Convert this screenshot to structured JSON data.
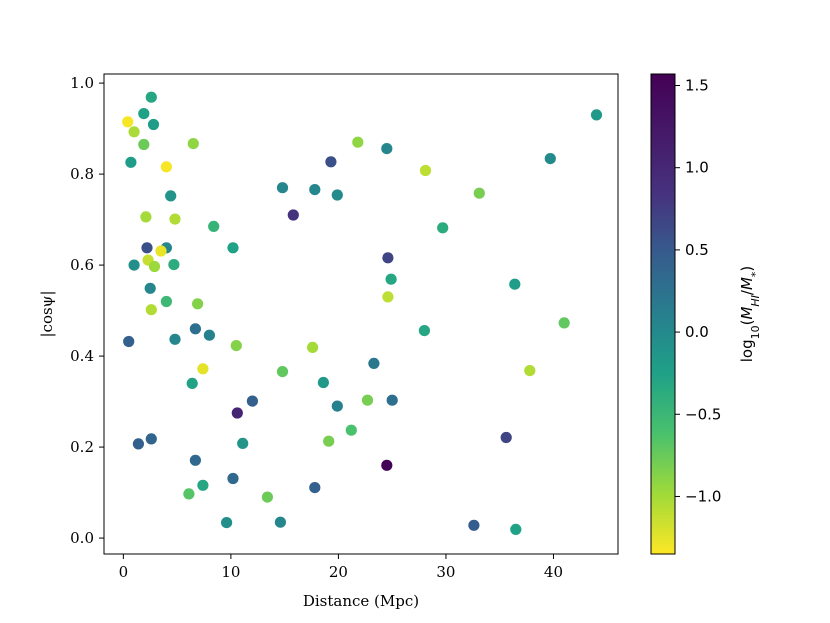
{
  "chart_data": {
    "type": "scatter",
    "title": "",
    "xlabel": "Distance (Mpc)",
    "ylabel": "|cosψ|",
    "xlim": [
      -1.8,
      46
    ],
    "ylim": [
      -0.035,
      1.02
    ],
    "xticks": [
      0,
      10,
      20,
      30,
      40
    ],
    "yticks": [
      0.0,
      0.2,
      0.4,
      0.6,
      0.8,
      1.0
    ],
    "xtick_labels": [
      "0",
      "10",
      "20",
      "30",
      "40"
    ],
    "ytick_labels": [
      "0.0",
      "0.2",
      "0.4",
      "0.6",
      "0.8",
      "1.0"
    ],
    "grid": false,
    "colorbar": {
      "label": "log10(M_HI/M_*)",
      "label_display": {
        "base": "log",
        "sub": "10",
        "open": "(",
        "mass": "M",
        "sub1": "HI",
        "slash": "/",
        "mass2": "M",
        "sub2": "*",
        "close": ")"
      },
      "colormap": "viridis_r",
      "min": -1.35,
      "max": 1.57,
      "ticks": [
        1.5,
        1.0,
        0.5,
        0.0,
        -0.5,
        -1.0
      ],
      "tick_labels": [
        "1.5",
        "1.0",
        "0.5",
        "0.0",
        "−0.5",
        "−1.0"
      ]
    },
    "points": [
      {
        "x": 0.4,
        "y": 0.915,
        "c": -1.3
      },
      {
        "x": 1.0,
        "y": 0.893,
        "c": -0.7
      },
      {
        "x": 0.7,
        "y": 0.826,
        "c": 0.15
      },
      {
        "x": 1.9,
        "y": 0.933,
        "c": 0.1
      },
      {
        "x": 1.9,
        "y": 0.865,
        "c": -0.4
      },
      {
        "x": 2.6,
        "y": 0.969,
        "c": 0.05
      },
      {
        "x": 2.8,
        "y": 0.909,
        "c": 0.15
      },
      {
        "x": 4.0,
        "y": 0.816,
        "c": -1.3
      },
      {
        "x": 6.5,
        "y": 0.867,
        "c": -0.55
      },
      {
        "x": 4.4,
        "y": 0.752,
        "c": 0.25
      },
      {
        "x": 2.1,
        "y": 0.706,
        "c": -0.65
      },
      {
        "x": 4.8,
        "y": 0.701,
        "c": -0.75
      },
      {
        "x": 8.4,
        "y": 0.685,
        "c": -0.1
      },
      {
        "x": 2.2,
        "y": 0.638,
        "c": 0.95
      },
      {
        "x": 4.0,
        "y": 0.638,
        "c": 0.4
      },
      {
        "x": 3.5,
        "y": 0.631,
        "c": -1.2
      },
      {
        "x": 2.3,
        "y": 0.611,
        "c": -0.9
      },
      {
        "x": 2.9,
        "y": 0.597,
        "c": -0.6
      },
      {
        "x": 1.0,
        "y": 0.6,
        "c": 0.3
      },
      {
        "x": 4.7,
        "y": 0.601,
        "c": 0.0
      },
      {
        "x": 2.5,
        "y": 0.549,
        "c": 0.4
      },
      {
        "x": 10.2,
        "y": 0.638,
        "c": 0.1
      },
      {
        "x": 4.0,
        "y": 0.52,
        "c": -0.15
      },
      {
        "x": 2.6,
        "y": 0.502,
        "c": -0.75
      },
      {
        "x": 6.9,
        "y": 0.515,
        "c": -0.5
      },
      {
        "x": 0.5,
        "y": 0.432,
        "c": 0.8
      },
      {
        "x": 4.8,
        "y": 0.437,
        "c": 0.4
      },
      {
        "x": 6.7,
        "y": 0.46,
        "c": 0.65
      },
      {
        "x": 8.0,
        "y": 0.446,
        "c": 0.45
      },
      {
        "x": 10.5,
        "y": 0.423,
        "c": -0.5
      },
      {
        "x": 7.4,
        "y": 0.372,
        "c": -1.15
      },
      {
        "x": 6.4,
        "y": 0.34,
        "c": 0.1
      },
      {
        "x": 12.0,
        "y": 0.301,
        "c": 0.8
      },
      {
        "x": 10.6,
        "y": 0.275,
        "c": 1.3
      },
      {
        "x": 1.4,
        "y": 0.207,
        "c": 0.8
      },
      {
        "x": 2.6,
        "y": 0.218,
        "c": 0.75
      },
      {
        "x": 6.7,
        "y": 0.171,
        "c": 0.7
      },
      {
        "x": 11.1,
        "y": 0.208,
        "c": 0.25
      },
      {
        "x": 7.4,
        "y": 0.116,
        "c": 0.05
      },
      {
        "x": 6.1,
        "y": 0.097,
        "c": -0.3
      },
      {
        "x": 10.2,
        "y": 0.131,
        "c": 0.7
      },
      {
        "x": 9.6,
        "y": 0.034,
        "c": 0.3
      },
      {
        "x": 13.4,
        "y": 0.09,
        "c": -0.4
      },
      {
        "x": 14.6,
        "y": 0.035,
        "c": 0.4
      },
      {
        "x": 14.8,
        "y": 0.77,
        "c": 0.4
      },
      {
        "x": 15.8,
        "y": 0.71,
        "c": 1.2
      },
      {
        "x": 17.8,
        "y": 0.766,
        "c": 0.4
      },
      {
        "x": 19.3,
        "y": 0.827,
        "c": 0.95
      },
      {
        "x": 19.9,
        "y": 0.754,
        "c": 0.35
      },
      {
        "x": 21.8,
        "y": 0.87,
        "c": -0.55
      },
      {
        "x": 24.5,
        "y": 0.856,
        "c": 0.4
      },
      {
        "x": 24.6,
        "y": 0.616,
        "c": 1.05
      },
      {
        "x": 24.9,
        "y": 0.569,
        "c": 0.05
      },
      {
        "x": 24.6,
        "y": 0.53,
        "c": -0.85
      },
      {
        "x": 14.8,
        "y": 0.366,
        "c": -0.35
      },
      {
        "x": 17.6,
        "y": 0.419,
        "c": -0.65
      },
      {
        "x": 18.6,
        "y": 0.342,
        "c": 0.2
      },
      {
        "x": 19.9,
        "y": 0.29,
        "c": 0.45
      },
      {
        "x": 22.7,
        "y": 0.303,
        "c": -0.45
      },
      {
        "x": 23.3,
        "y": 0.384,
        "c": 0.55
      },
      {
        "x": 25.0,
        "y": 0.303,
        "c": 0.65
      },
      {
        "x": 19.1,
        "y": 0.213,
        "c": -0.45
      },
      {
        "x": 21.2,
        "y": 0.237,
        "c": -0.25
      },
      {
        "x": 24.5,
        "y": 0.16,
        "c": 1.55
      },
      {
        "x": 17.8,
        "y": 0.111,
        "c": 0.8
      },
      {
        "x": 28.1,
        "y": 0.808,
        "c": -0.85
      },
      {
        "x": 29.7,
        "y": 0.682,
        "c": 0.0
      },
      {
        "x": 33.1,
        "y": 0.758,
        "c": -0.45
      },
      {
        "x": 28.0,
        "y": 0.456,
        "c": 0.05
      },
      {
        "x": 36.4,
        "y": 0.558,
        "c": 0.15
      },
      {
        "x": 39.7,
        "y": 0.834,
        "c": 0.35
      },
      {
        "x": 44.0,
        "y": 0.93,
        "c": 0.2
      },
      {
        "x": 41.0,
        "y": 0.473,
        "c": -0.35
      },
      {
        "x": 37.8,
        "y": 0.368,
        "c": -0.75
      },
      {
        "x": 35.6,
        "y": 0.221,
        "c": 1.05
      },
      {
        "x": 32.6,
        "y": 0.028,
        "c": 0.85
      },
      {
        "x": 36.5,
        "y": 0.019,
        "c": 0.1
      }
    ]
  }
}
